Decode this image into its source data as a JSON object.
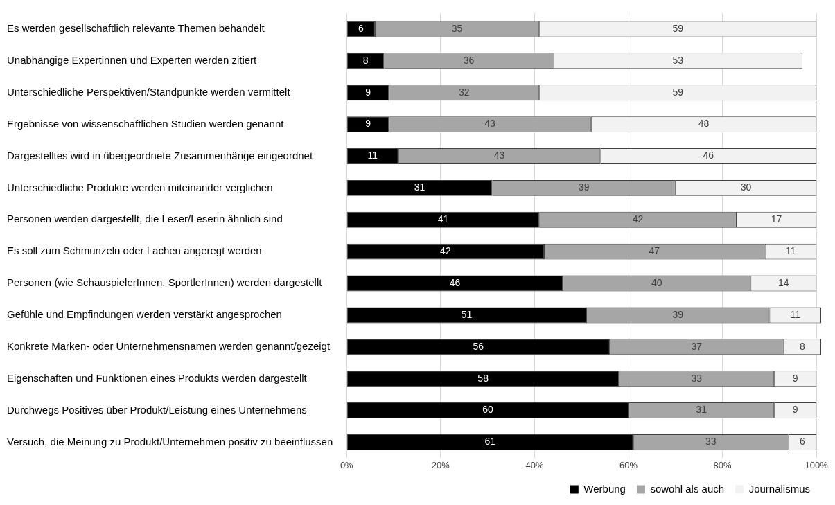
{
  "chart_data": {
    "type": "bar",
    "orientation": "horizontal",
    "stacked": true,
    "categories": [
      "Es werden gesellschaftlich relevante Themen behandelt",
      "Unabhängige Expertinnen und Experten werden zitiert",
      "Unterschiedliche Perspektiven/Standpunkte werden vermittelt",
      "Ergebnisse von wissenschaftlichen Studien werden genannt",
      "Dargestelltes wird in übergeordnete Zusammenhänge eingeordnet",
      "Unterschiedliche Produkte werden miteinander verglichen",
      "Personen werden dargestellt, die Leser/Leserin ähnlich sind",
      "Es soll zum Schmunzeln oder Lachen angeregt werden",
      "Personen (wie SchauspielerInnen, SportlerInnen) werden dargestellt",
      "Gefühle und Empfindungen werden verstärkt angesprochen",
      "Konkrete Marken- oder Unternehmensnamen werden genannt/gezeigt",
      "Eigenschaften und Funktionen eines Produkts werden dargestellt",
      "Durchwegs Positives über Produkt/Leistung eines Unternehmens",
      "Versuch, die Meinung zu Produkt/Unternehmen positiv zu beeinflussen"
    ],
    "series": [
      {
        "name": "Werbung",
        "color": "#000000",
        "values": [
          6,
          8,
          9,
          9,
          11,
          31,
          41,
          42,
          46,
          51,
          56,
          58,
          60,
          61
        ]
      },
      {
        "name": "sowohl als auch",
        "color": "#a6a6a6",
        "values": [
          35,
          36,
          32,
          43,
          43,
          39,
          42,
          47,
          40,
          39,
          37,
          33,
          31,
          33
        ]
      },
      {
        "name": "Journalismus",
        "color": "#f2f2f2",
        "values": [
          59,
          53,
          59,
          48,
          46,
          30,
          17,
          11,
          14,
          11,
          8,
          9,
          9,
          6
        ]
      }
    ],
    "xlim": [
      0,
      101
    ],
    "xticks": [
      {
        "value": 0,
        "label": "0%"
      },
      {
        "value": 20,
        "label": "20%"
      },
      {
        "value": 40,
        "label": "40%"
      },
      {
        "value": 60,
        "label": "60%"
      },
      {
        "value": 80,
        "label": "80%"
      },
      {
        "value": 100,
        "label": "100%"
      }
    ],
    "grid": "x",
    "legend": "bottom",
    "data_labels": true
  }
}
